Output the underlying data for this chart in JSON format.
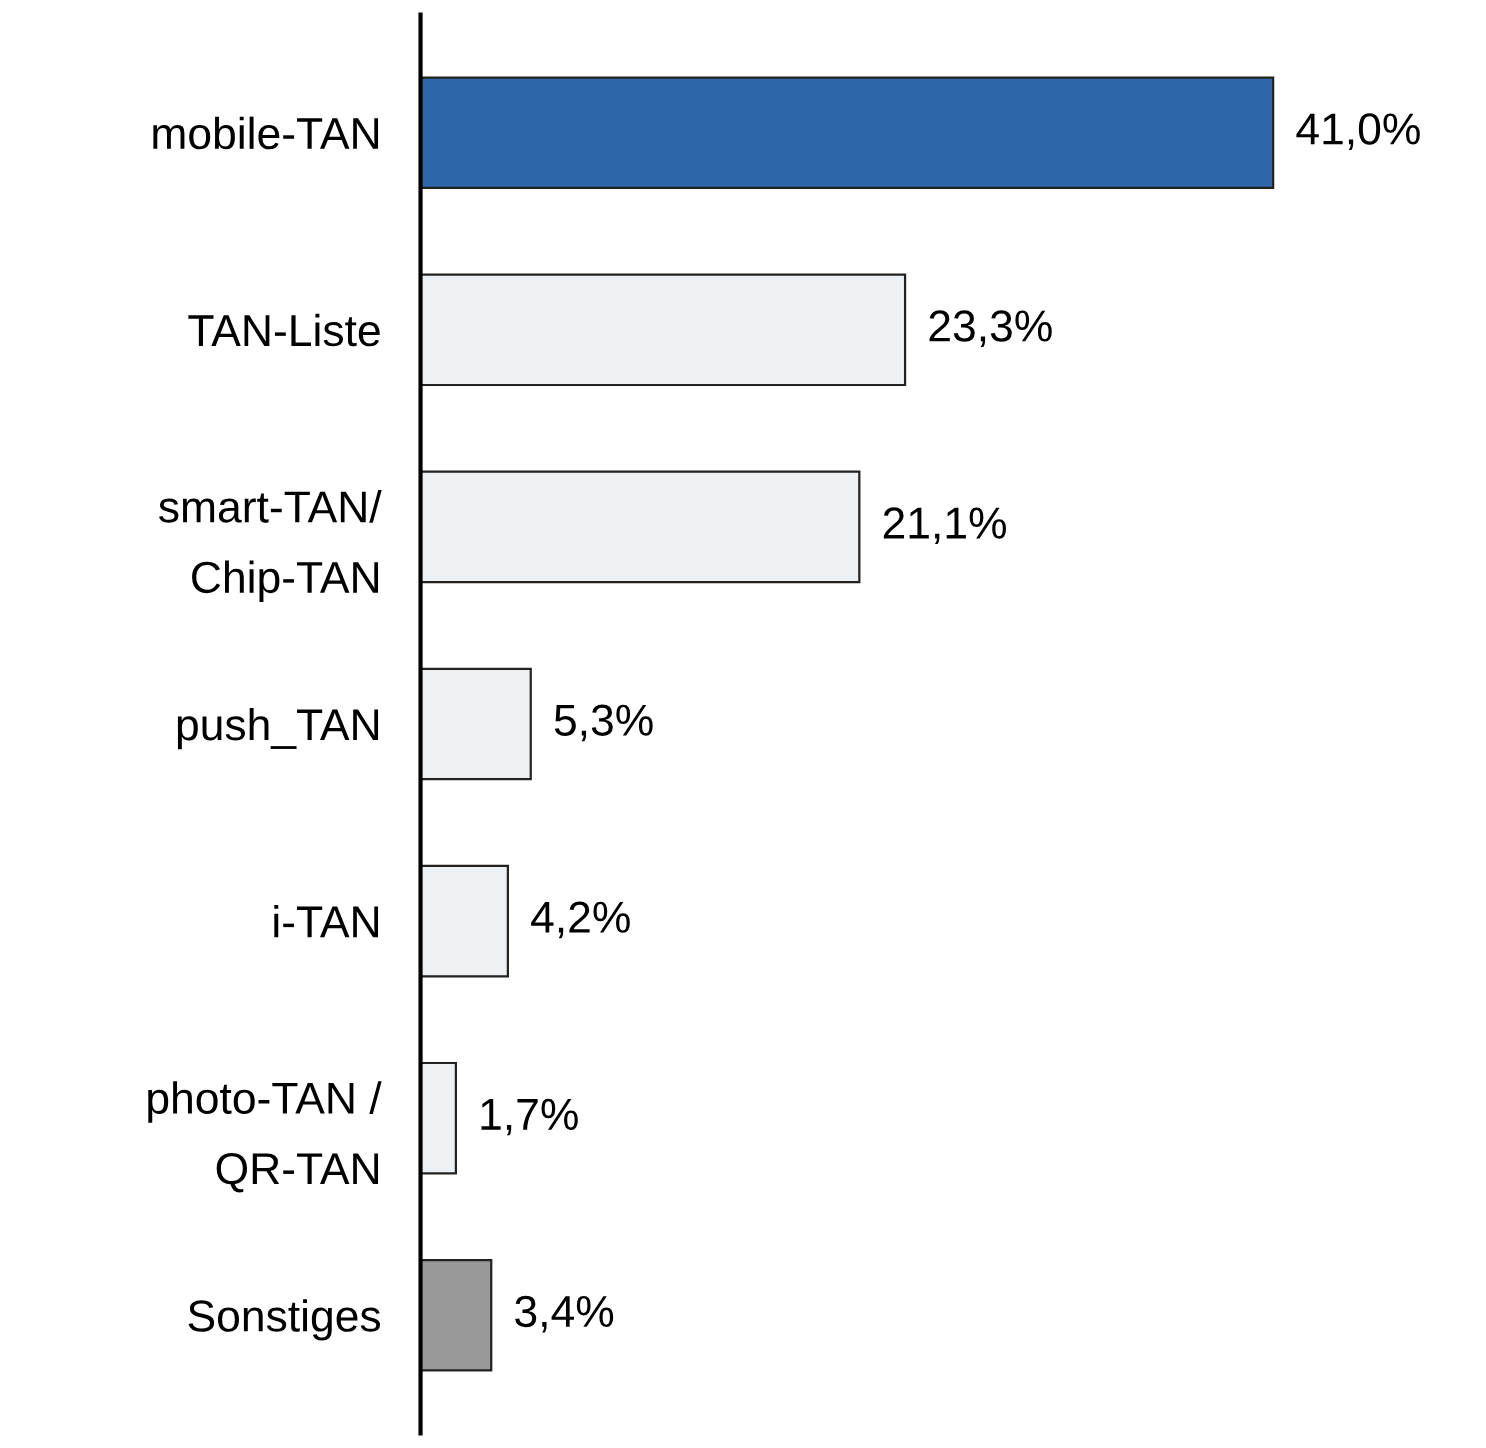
{
  "chart_data": {
    "type": "bar",
    "orientation": "horizontal",
    "categories": [
      "mobile-TAN",
      "TAN-Liste",
      "smart-TAN/\nChip-TAN",
      "push_TAN",
      "i-TAN",
      "photo-TAN /\nQR-TAN",
      "Sonstiges"
    ],
    "values": [
      41.0,
      23.3,
      21.1,
      5.3,
      4.2,
      1.7,
      3.4
    ],
    "colors": [
      "#2e67a8",
      "#eef1f3",
      "#eef1f3",
      "#eef1f3",
      "#eef1f3",
      "#eef1f3",
      "#999999"
    ],
    "value_labels": [
      "41,0%",
      "23,3%",
      "21,1%",
      "5,3%",
      "4,2%",
      "1,7%",
      "3,4%"
    ],
    "grid": false,
    "legend": false
  }
}
